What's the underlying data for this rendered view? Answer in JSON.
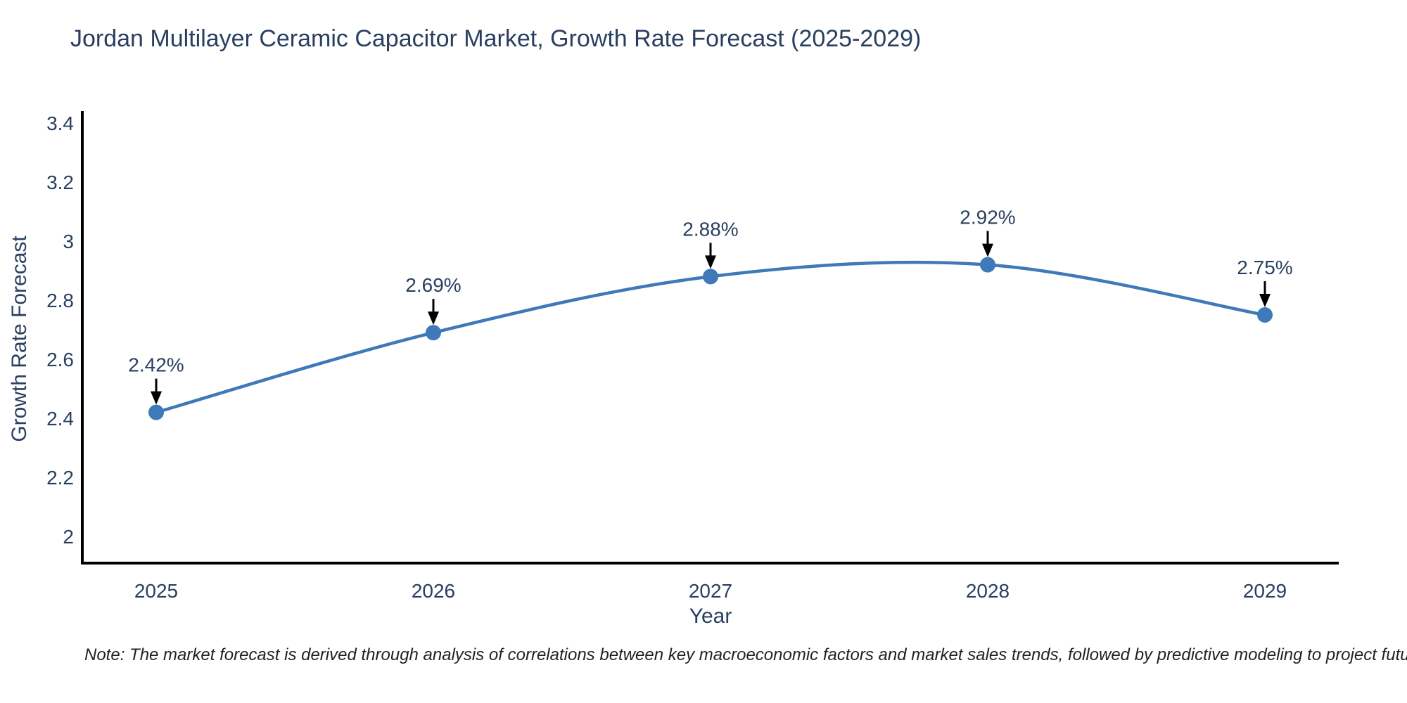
{
  "title": "Jordan Multilayer Ceramic Capacitor Market, Growth Rate Forecast (2025-2029)",
  "note": "Note: The market forecast is derived through analysis of correlations between key macroeconomic factors and market sales trends, followed by predictive modeling to project future sales",
  "chart_data": {
    "type": "line",
    "line_shape": "spline",
    "title": "Jordan Multilayer Ceramic Capacitor Market, Growth Rate Forecast (2025-2029)",
    "xlabel": "Year",
    "ylabel": "Growth Rate Forecast",
    "x": [
      2025,
      2026,
      2027,
      2028,
      2029
    ],
    "series": [
      {
        "name": "Growth Rate Forecast",
        "values": [
          2.42,
          2.69,
          2.88,
          2.92,
          2.75
        ]
      }
    ],
    "point_labels": [
      "2.42%",
      "2.69%",
      "2.88%",
      "2.92%",
      "2.75%"
    ],
    "xtick_labels": [
      "2025",
      "2026",
      "2027",
      "2028",
      "2029"
    ],
    "ytick_values": [
      2,
      2.2,
      2.4,
      2.6,
      2.8,
      3,
      3.2,
      3.4
    ],
    "ytick_labels": [
      "2",
      "2.2",
      "2.4",
      "2.6",
      "2.8",
      "3",
      "3.2",
      "3.4"
    ],
    "ylim": [
      1.91,
      3.44
    ],
    "grid": false,
    "legend_position": "none",
    "colors": {
      "line": "#3e79b8",
      "marker": "#3e79b8",
      "annotation_text": "#2a3f5f",
      "annotation_arrow": "#000000",
      "axis_line": "#000000",
      "title_text": "#2a3f5f",
      "note_text": "#222222"
    }
  }
}
